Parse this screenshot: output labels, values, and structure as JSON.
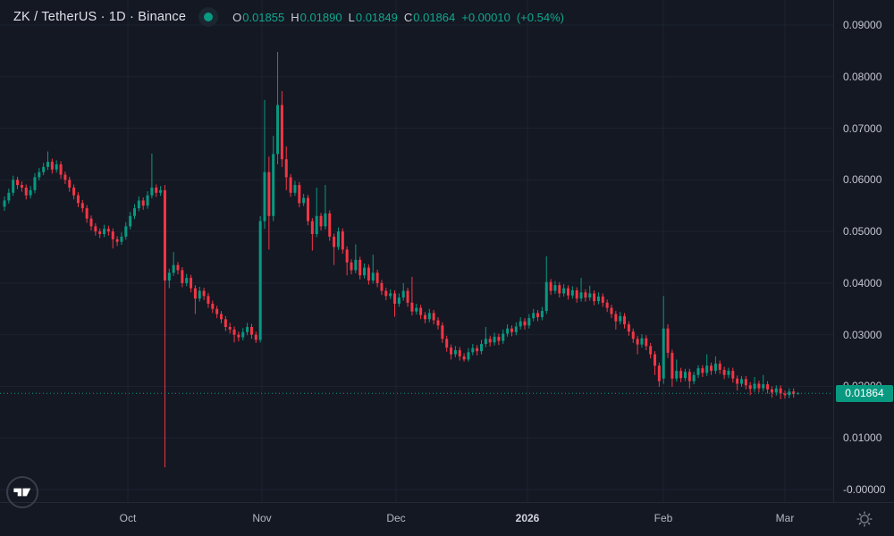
{
  "header": {
    "symbol_title": "ZK / TetherUS · 1D · Binance",
    "ohlc": {
      "open_label": "O",
      "open": "0.01855",
      "high_label": "H",
      "high": "0.01890",
      "low_label": "L",
      "low": "0.01849",
      "close_label": "C",
      "close": "0.01864",
      "change": "+0.00010",
      "change_pct": "(+0.54%)"
    }
  },
  "colors": {
    "up": "#089981",
    "down": "#f23645",
    "accent_text": "#0fa88e",
    "badge_bg": "#089981",
    "grid": "#1d2230",
    "price_line": "#089981"
  },
  "price_axis": {
    "ticks": [
      {
        "label": "0.09000",
        "value": 0.09
      },
      {
        "label": "0.08000",
        "value": 0.08
      },
      {
        "label": "0.07000",
        "value": 0.07
      },
      {
        "label": "0.06000",
        "value": 0.06
      },
      {
        "label": "0.05000",
        "value": 0.05
      },
      {
        "label": "0.04000",
        "value": 0.04
      },
      {
        "label": "0.03000",
        "value": 0.03
      },
      {
        "label": "0.02000",
        "value": 0.02
      },
      {
        "label": "0.01000",
        "value": 0.01
      },
      {
        "label": "-0.00000",
        "value": 0.0
      }
    ],
    "last_price_badge": "0.01864"
  },
  "time_axis": {
    "labels": [
      {
        "text": "Oct",
        "x": 143,
        "year": false
      },
      {
        "text": "Nov",
        "x": 293,
        "year": false
      },
      {
        "text": "Dec",
        "x": 443,
        "year": false
      },
      {
        "text": "2026",
        "x": 590,
        "year": true
      },
      {
        "text": "Feb",
        "x": 742,
        "year": false
      },
      {
        "text": "Mar",
        "x": 878,
        "year": false
      }
    ]
  },
  "chart_data": {
    "type": "candlestick",
    "title": "ZK / TetherUS · 1D · Binance",
    "interval": "1D",
    "x_months": [
      "Oct",
      "Nov",
      "Dec",
      "2026",
      "Feb",
      "Mar"
    ],
    "ylim": [
      0.0,
      0.0925
    ],
    "y_ticks": [
      0.09,
      0.08,
      0.07,
      0.06,
      0.05,
      0.04,
      0.03,
      0.02,
      0.01,
      0.0
    ],
    "last_price": 0.01864,
    "price_line_value": 0.01864,
    "legend_position": "none",
    "grid": true,
    "candles_ohlc": [
      [
        0.0548,
        0.0568,
        0.054,
        0.056
      ],
      [
        0.056,
        0.0583,
        0.0554,
        0.0575
      ],
      [
        0.0575,
        0.0608,
        0.0569,
        0.06
      ],
      [
        0.06,
        0.0606,
        0.0582,
        0.059
      ],
      [
        0.059,
        0.0597,
        0.0577,
        0.0585
      ],
      [
        0.0585,
        0.0591,
        0.0562,
        0.057
      ],
      [
        0.057,
        0.0588,
        0.0564,
        0.058
      ],
      [
        0.058,
        0.0613,
        0.0574,
        0.0605
      ],
      [
        0.0605,
        0.0623,
        0.0599,
        0.0615
      ],
      [
        0.0615,
        0.0633,
        0.0609,
        0.0625
      ],
      [
        0.0625,
        0.0655,
        0.0619,
        0.0635
      ],
      [
        0.0635,
        0.0641,
        0.0612,
        0.062
      ],
      [
        0.062,
        0.0638,
        0.0614,
        0.063
      ],
      [
        0.063,
        0.0636,
        0.0602,
        0.061
      ],
      [
        0.061,
        0.0616,
        0.0592,
        0.06
      ],
      [
        0.06,
        0.0606,
        0.0577,
        0.0585
      ],
      [
        0.0585,
        0.0591,
        0.0562,
        0.057
      ],
      [
        0.057,
        0.0576,
        0.0547,
        0.0555
      ],
      [
        0.0555,
        0.0561,
        0.0537,
        0.0545
      ],
      [
        0.0545,
        0.0551,
        0.0517,
        0.0525
      ],
      [
        0.0525,
        0.0531,
        0.0502,
        0.051
      ],
      [
        0.051,
        0.0516,
        0.0492,
        0.05
      ],
      [
        0.05,
        0.0506,
        0.0487,
        0.0495
      ],
      [
        0.0495,
        0.0513,
        0.0489,
        0.0505
      ],
      [
        0.0505,
        0.0511,
        0.0492,
        0.05
      ],
      [
        0.05,
        0.0506,
        0.0467,
        0.0485
      ],
      [
        0.0485,
        0.0491,
        0.0472,
        0.048
      ],
      [
        0.048,
        0.0498,
        0.0474,
        0.049
      ],
      [
        0.049,
        0.0518,
        0.0484,
        0.051
      ],
      [
        0.051,
        0.0538,
        0.0504,
        0.053
      ],
      [
        0.053,
        0.0553,
        0.0524,
        0.0545
      ],
      [
        0.0545,
        0.0568,
        0.0539,
        0.056
      ],
      [
        0.056,
        0.0566,
        0.0542,
        0.055
      ],
      [
        0.055,
        0.0578,
        0.0544,
        0.057
      ],
      [
        0.057,
        0.0651,
        0.0564,
        0.0585
      ],
      [
        0.0585,
        0.0591,
        0.0567,
        0.0575
      ],
      [
        0.0575,
        0.0588,
        0.0569,
        0.058
      ],
      [
        0.058,
        0.059,
        0.0043,
        0.0405
      ],
      [
        0.0405,
        0.0428,
        0.039,
        0.042
      ],
      [
        0.042,
        0.046,
        0.0414,
        0.0435
      ],
      [
        0.0435,
        0.0441,
        0.0417,
        0.0425
      ],
      [
        0.0425,
        0.0431,
        0.0392,
        0.04
      ],
      [
        0.04,
        0.0418,
        0.0394,
        0.041
      ],
      [
        0.041,
        0.0416,
        0.0382,
        0.039
      ],
      [
        0.039,
        0.0396,
        0.034,
        0.037
      ],
      [
        0.037,
        0.0393,
        0.0364,
        0.0385
      ],
      [
        0.0385,
        0.0391,
        0.0367,
        0.0375
      ],
      [
        0.0375,
        0.0381,
        0.0352,
        0.036
      ],
      [
        0.036,
        0.0366,
        0.0342,
        0.035
      ],
      [
        0.035,
        0.0356,
        0.0332,
        0.034
      ],
      [
        0.034,
        0.0346,
        0.0322,
        0.033
      ],
      [
        0.033,
        0.0336,
        0.0307,
        0.0315
      ],
      [
        0.0315,
        0.0323,
        0.0302,
        0.031
      ],
      [
        0.031,
        0.0316,
        0.0285,
        0.03
      ],
      [
        0.03,
        0.0306,
        0.0287,
        0.0295
      ],
      [
        0.0295,
        0.0313,
        0.0289,
        0.0305
      ],
      [
        0.0305,
        0.0323,
        0.0299,
        0.0315
      ],
      [
        0.0315,
        0.0321,
        0.0292,
        0.03
      ],
      [
        0.03,
        0.0306,
        0.0284,
        0.029
      ],
      [
        0.029,
        0.053,
        0.0285,
        0.052
      ],
      [
        0.052,
        0.0755,
        0.0505,
        0.0615
      ],
      [
        0.0615,
        0.0645,
        0.0465,
        0.053
      ],
      [
        0.053,
        0.0685,
        0.052,
        0.065
      ],
      [
        0.065,
        0.0848,
        0.063,
        0.0745
      ],
      [
        0.0745,
        0.0772,
        0.0625,
        0.064
      ],
      [
        0.064,
        0.0665,
        0.058,
        0.0605
      ],
      [
        0.0605,
        0.0611,
        0.0567,
        0.0575
      ],
      [
        0.0575,
        0.0598,
        0.0569,
        0.059
      ],
      [
        0.059,
        0.0596,
        0.0547,
        0.0555
      ],
      [
        0.0555,
        0.0573,
        0.0549,
        0.0565
      ],
      [
        0.0565,
        0.0571,
        0.0512,
        0.052
      ],
      [
        0.052,
        0.0526,
        0.0463,
        0.0495
      ],
      [
        0.0495,
        0.0585,
        0.0489,
        0.053
      ],
      [
        0.053,
        0.0536,
        0.0502,
        0.051
      ],
      [
        0.051,
        0.059,
        0.0504,
        0.0535
      ],
      [
        0.0535,
        0.0541,
        0.0482,
        0.049
      ],
      [
        0.049,
        0.0496,
        0.0435,
        0.047
      ],
      [
        0.047,
        0.0508,
        0.0464,
        0.05
      ],
      [
        0.05,
        0.0506,
        0.0457,
        0.0465
      ],
      [
        0.0465,
        0.0471,
        0.0415,
        0.044
      ],
      [
        0.044,
        0.0446,
        0.0417,
        0.0425
      ],
      [
        0.0425,
        0.0475,
        0.0419,
        0.0445
      ],
      [
        0.0445,
        0.0451,
        0.0407,
        0.0415
      ],
      [
        0.0415,
        0.0438,
        0.0409,
        0.043
      ],
      [
        0.043,
        0.0436,
        0.0397,
        0.0405
      ],
      [
        0.0405,
        0.0455,
        0.0399,
        0.042
      ],
      [
        0.042,
        0.0426,
        0.0392,
        0.04
      ],
      [
        0.04,
        0.0406,
        0.0377,
        0.0385
      ],
      [
        0.0385,
        0.0391,
        0.0367,
        0.0375
      ],
      [
        0.0375,
        0.0388,
        0.0369,
        0.038
      ],
      [
        0.038,
        0.0386,
        0.0335,
        0.036
      ],
      [
        0.036,
        0.038,
        0.0354,
        0.0372
      ],
      [
        0.0372,
        0.04,
        0.0366,
        0.0385
      ],
      [
        0.0385,
        0.0391,
        0.0354,
        0.0362
      ],
      [
        0.0362,
        0.0412,
        0.0337,
        0.0345
      ],
      [
        0.0345,
        0.036,
        0.0339,
        0.0352
      ],
      [
        0.0352,
        0.0358,
        0.033,
        0.0338
      ],
      [
        0.0338,
        0.0344,
        0.0322,
        0.033
      ],
      [
        0.033,
        0.035,
        0.0324,
        0.0342
      ],
      [
        0.0342,
        0.0348,
        0.032,
        0.0328
      ],
      [
        0.0328,
        0.0334,
        0.031,
        0.0318
      ],
      [
        0.0318,
        0.0324,
        0.0284,
        0.0292
      ],
      [
        0.0292,
        0.0298,
        0.0267,
        0.0275
      ],
      [
        0.0275,
        0.0281,
        0.0252,
        0.0262
      ],
      [
        0.0262,
        0.0278,
        0.0256,
        0.027
      ],
      [
        0.027,
        0.0276,
        0.025,
        0.0258
      ],
      [
        0.0258,
        0.0264,
        0.0248,
        0.0252
      ],
      [
        0.0252,
        0.0274,
        0.0248,
        0.0266
      ],
      [
        0.0266,
        0.0282,
        0.026,
        0.0274
      ],
      [
        0.0274,
        0.028,
        0.026,
        0.0268
      ],
      [
        0.0268,
        0.029,
        0.0262,
        0.0282
      ],
      [
        0.0282,
        0.0315,
        0.0276,
        0.0292
      ],
      [
        0.0292,
        0.0298,
        0.0277,
        0.0285
      ],
      [
        0.0285,
        0.0304,
        0.0279,
        0.0296
      ],
      [
        0.0296,
        0.0302,
        0.028,
        0.0288
      ],
      [
        0.0288,
        0.031,
        0.0282,
        0.0302
      ],
      [
        0.0302,
        0.032,
        0.0296,
        0.0312
      ],
      [
        0.0312,
        0.0318,
        0.0297,
        0.0305
      ],
      [
        0.0305,
        0.0324,
        0.0299,
        0.0316
      ],
      [
        0.0316,
        0.0334,
        0.031,
        0.0326
      ],
      [
        0.0326,
        0.0332,
        0.031,
        0.0318
      ],
      [
        0.0318,
        0.034,
        0.0312,
        0.0332
      ],
      [
        0.0332,
        0.035,
        0.0326,
        0.0342
      ],
      [
        0.0342,
        0.0348,
        0.0326,
        0.0334
      ],
      [
        0.0334,
        0.0354,
        0.0328,
        0.0346
      ],
      [
        0.0346,
        0.0452,
        0.034,
        0.0402
      ],
      [
        0.0402,
        0.0408,
        0.0377,
        0.0385
      ],
      [
        0.0385,
        0.0404,
        0.0379,
        0.0396
      ],
      [
        0.0396,
        0.0402,
        0.0372,
        0.038
      ],
      [
        0.038,
        0.0398,
        0.0374,
        0.039
      ],
      [
        0.039,
        0.0396,
        0.0368,
        0.0376
      ],
      [
        0.0376,
        0.0394,
        0.037,
        0.0386
      ],
      [
        0.0386,
        0.0392,
        0.0362,
        0.037
      ],
      [
        0.037,
        0.041,
        0.0364,
        0.0382
      ],
      [
        0.0382,
        0.0388,
        0.0364,
        0.0372
      ],
      [
        0.0372,
        0.0395,
        0.0366,
        0.038
      ],
      [
        0.038,
        0.0386,
        0.0357,
        0.0365
      ],
      [
        0.0365,
        0.0382,
        0.0359,
        0.0374
      ],
      [
        0.0374,
        0.038,
        0.0354,
        0.0362
      ],
      [
        0.0362,
        0.0368,
        0.0344,
        0.0352
      ],
      [
        0.0352,
        0.0358,
        0.0332,
        0.034
      ],
      [
        0.034,
        0.0346,
        0.031,
        0.0326
      ],
      [
        0.0326,
        0.0344,
        0.032,
        0.0336
      ],
      [
        0.0336,
        0.0342,
        0.0312,
        0.032
      ],
      [
        0.032,
        0.0326,
        0.0298,
        0.0306
      ],
      [
        0.0306,
        0.0312,
        0.0284,
        0.0292
      ],
      [
        0.0292,
        0.0298,
        0.0262,
        0.0281
      ],
      [
        0.0281,
        0.0301,
        0.0275,
        0.0293
      ],
      [
        0.0293,
        0.0299,
        0.027,
        0.0278
      ],
      [
        0.0278,
        0.0284,
        0.0254,
        0.0262
      ],
      [
        0.0262,
        0.0268,
        0.0222,
        0.024
      ],
      [
        0.024,
        0.0246,
        0.0199,
        0.021
      ],
      [
        0.0215,
        0.0375,
        0.0205,
        0.0312
      ],
      [
        0.0312,
        0.032,
        0.0255,
        0.0265
      ],
      [
        0.0265,
        0.0271,
        0.0199,
        0.0215
      ],
      [
        0.0215,
        0.0252,
        0.0209,
        0.023
      ],
      [
        0.023,
        0.0236,
        0.0208,
        0.0216
      ],
      [
        0.0216,
        0.0234,
        0.021,
        0.0228
      ],
      [
        0.0228,
        0.0234,
        0.0196,
        0.021
      ],
      [
        0.021,
        0.0228,
        0.0204,
        0.0222
      ],
      [
        0.0222,
        0.0241,
        0.0216,
        0.0235
      ],
      [
        0.0235,
        0.0241,
        0.0218,
        0.0226
      ],
      [
        0.0226,
        0.0262,
        0.022,
        0.024
      ],
      [
        0.024,
        0.0246,
        0.0222,
        0.023
      ],
      [
        0.023,
        0.0258,
        0.0224,
        0.0244
      ],
      [
        0.0244,
        0.025,
        0.0224,
        0.0232
      ],
      [
        0.0232,
        0.0238,
        0.0214,
        0.0222
      ],
      [
        0.0222,
        0.0236,
        0.0216,
        0.023
      ],
      [
        0.023,
        0.0236,
        0.0207,
        0.0215
      ],
      [
        0.0215,
        0.0221,
        0.0192,
        0.0205
      ],
      [
        0.0205,
        0.022,
        0.0199,
        0.0214
      ],
      [
        0.0214,
        0.022,
        0.0194,
        0.0202
      ],
      [
        0.0202,
        0.0208,
        0.0183,
        0.0195
      ],
      [
        0.0195,
        0.0218,
        0.0189,
        0.0205
      ],
      [
        0.0205,
        0.0211,
        0.0188,
        0.0196
      ],
      [
        0.0196,
        0.0222,
        0.019,
        0.0204
      ],
      [
        0.0204,
        0.021,
        0.0186,
        0.0194
      ],
      [
        0.0194,
        0.02,
        0.0178,
        0.0188
      ],
      [
        0.0188,
        0.0202,
        0.0182,
        0.0196
      ],
      [
        0.0196,
        0.0202,
        0.0175,
        0.0186
      ],
      [
        0.0186,
        0.0192,
        0.0176,
        0.0183
      ],
      [
        0.0183,
        0.0196,
        0.0177,
        0.019
      ],
      [
        0.019,
        0.0196,
        0.0178,
        0.0185
      ],
      [
        0.01855,
        0.0189,
        0.01849,
        0.01864
      ]
    ]
  }
}
